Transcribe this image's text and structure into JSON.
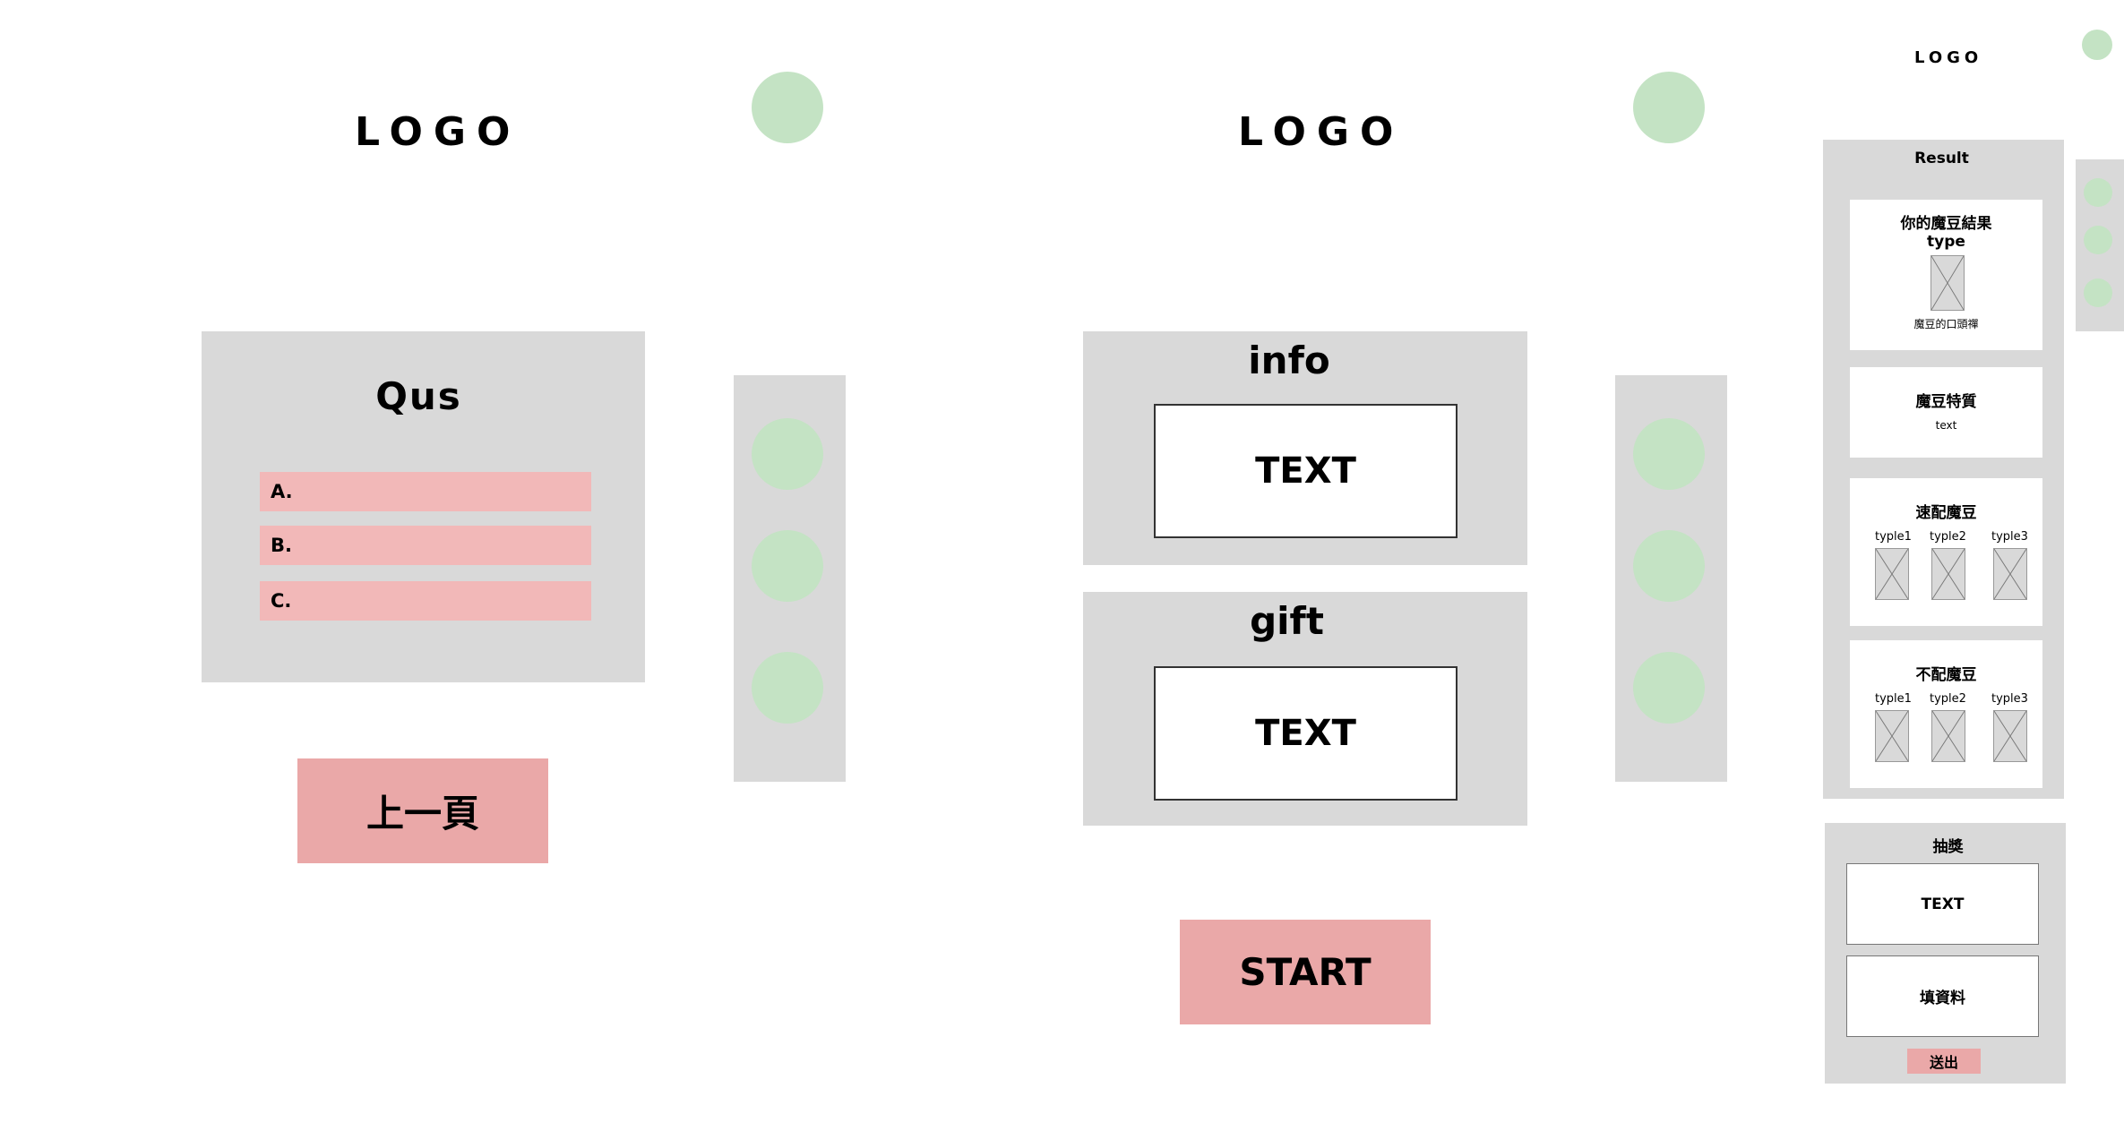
{
  "screen1": {
    "logo": "LOGO",
    "question_title": "Qus",
    "options": [
      "A.",
      "B.",
      "C."
    ],
    "prev_button": "上一頁"
  },
  "screen2": {
    "logo": "LOGO",
    "info_title": "info",
    "info_text": "TEXT",
    "gift_title": "gift",
    "gift_text": "TEXT",
    "start_button": "START"
  },
  "screen3": {
    "logo": "LOGO",
    "result_title": "Result",
    "result_card": {
      "title": "你的魔豆結果",
      "type": "type",
      "caption": "魔豆的口頭禪"
    },
    "trait_card": {
      "title": "魔豆特質",
      "text": "text"
    },
    "match_card": {
      "title": "速配魔豆",
      "types": [
        "typle1",
        "typle2",
        "typle3"
      ]
    },
    "mismatch_card": {
      "title": "不配魔豆",
      "types": [
        "typle1",
        "typle2",
        "typle3"
      ]
    },
    "lottery": {
      "title": "抽獎",
      "text": "TEXT",
      "form_label": "填資料",
      "submit_button": "送出"
    }
  },
  "colors": {
    "panel_gray": "#d9d9d9",
    "button_pink": "#eaa8a8",
    "option_pink": "#f2b8b8",
    "circle_green": "#c4e3c4"
  }
}
